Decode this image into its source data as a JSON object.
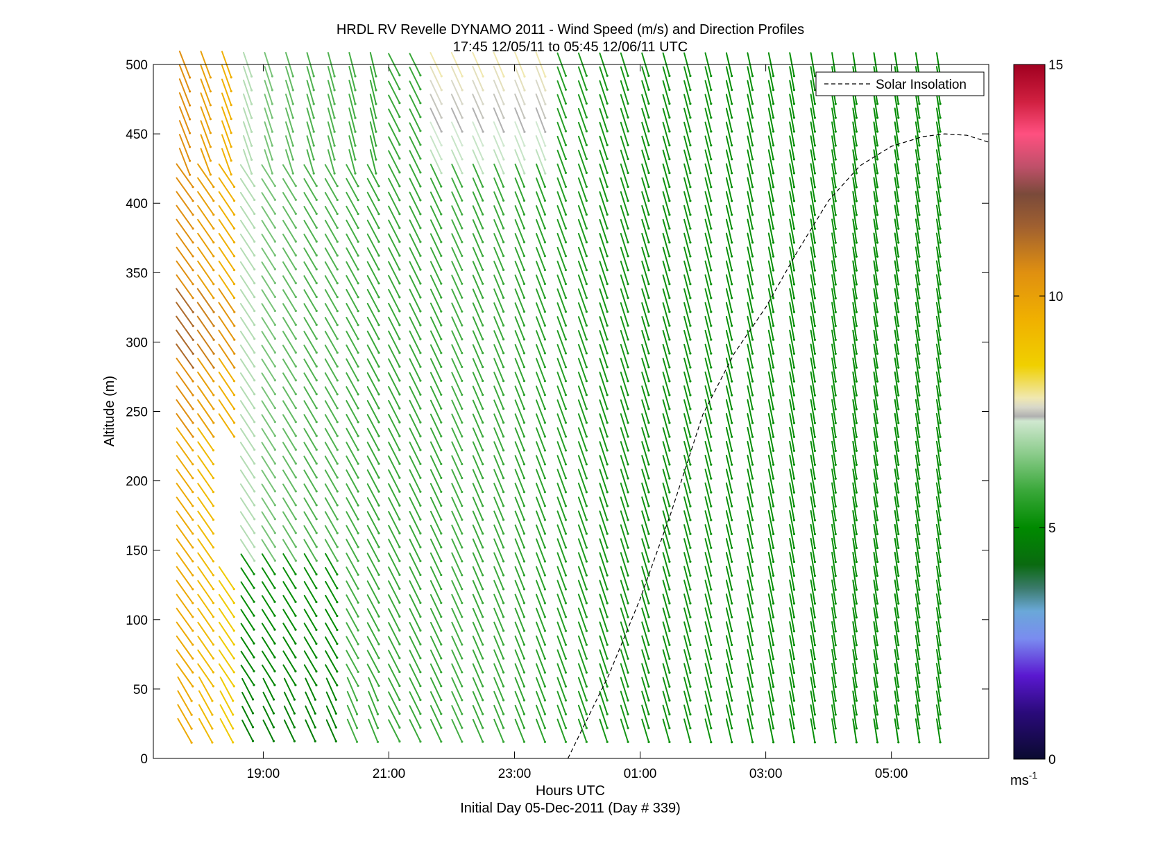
{
  "chart_data": {
    "type": "quiver",
    "title": "HRDL RV Revelle DYNAMO 2011 - Wind Speed (m/s) and Direction Profiles",
    "subtitle": "17:45 12/05/11 to 05:45 12/06/11  UTC",
    "xlabel": "Hours UTC",
    "xlabel2": "Initial Day 05-Dec-2011 (Day # 339)",
    "ylabel": "Altitude (m)",
    "x_range_hours": [
      17.25,
      30.55
    ],
    "y_range": [
      0,
      500
    ],
    "x_ticks": [
      {
        "value": 19,
        "label": "19:00"
      },
      {
        "value": 21,
        "label": "21:00"
      },
      {
        "value": 23,
        "label": "23:00"
      },
      {
        "value": 25,
        "label": "01:00"
      },
      {
        "value": 27,
        "label": "03:00"
      },
      {
        "value": 29,
        "label": "05:00"
      }
    ],
    "y_ticks": [
      0,
      50,
      100,
      150,
      200,
      250,
      300,
      350,
      400,
      450,
      500
    ],
    "profile_start_hour": 17.75,
    "profile_end_hour": 29.75,
    "profile_interval_hours": 0.3333,
    "altitudes": [
      20,
      30,
      40,
      50,
      60,
      70,
      80,
      90,
      100,
      110,
      120,
      130,
      140,
      150,
      160,
      170,
      180,
      190,
      200,
      210,
      220,
      230,
      240,
      250,
      260,
      270,
      280,
      290,
      300,
      310,
      320,
      330,
      340,
      350,
      360,
      370,
      380,
      390,
      400,
      410,
      420,
      430,
      440,
      450,
      460,
      470,
      480,
      490,
      500
    ],
    "wind_speed_by_profile_ms": [
      9.5,
      9.0,
      8.5,
      7.0,
      6.4,
      6.2,
      6.0,
      6.0,
      5.9,
      5.8,
      5.8,
      5.8,
      5.8,
      5.9,
      5.8,
      5.8,
      5.7,
      5.6,
      5.5,
      5.4,
      5.3,
      5.3,
      5.2,
      5.2,
      5.2,
      5.2,
      5.1,
      5.1,
      5.1,
      5.1,
      5.1,
      5.1,
      5.0,
      5.0,
      5.0,
      5.0,
      5.0
    ],
    "wind_speed_note": "representative speeds; low levels 18:45-19:45 near 4-5 m/s, upper levels 21:45-23:45 near 7-8 m/s",
    "legend": {
      "entries": [
        "Solar Insolation"
      ],
      "position": "top-right"
    },
    "solar_insolation": {
      "style": "dashed",
      "x": [
        23.85,
        24.5,
        25.0,
        25.5,
        26.0,
        26.5,
        27.0,
        27.5,
        28.0,
        28.5,
        29.0,
        29.5,
        29.85,
        30.2,
        30.55
      ],
      "y": [
        0,
        60,
        115,
        178,
        248,
        292,
        325,
        365,
        402,
        427,
        441,
        448,
        450,
        449,
        444
      ]
    },
    "colorbar": {
      "range": [
        0,
        15
      ],
      "ticks": [
        0,
        5,
        10,
        15
      ],
      "unit_label": "ms",
      "unit_exponent": "-1"
    }
  },
  "colors": {
    "colorbar_stops": [
      {
        "v": 0,
        "c": "#0a0a30"
      },
      {
        "v": 1,
        "c": "#2a0a7a"
      },
      {
        "v": 1.8,
        "c": "#5a18d0"
      },
      {
        "v": 2.6,
        "c": "#7a8cf0"
      },
      {
        "v": 3.2,
        "c": "#6aa8d8"
      },
      {
        "v": 3.7,
        "c": "#3a7a6a"
      },
      {
        "v": 4.2,
        "c": "#0a6a10"
      },
      {
        "v": 5.0,
        "c": "#008a00"
      },
      {
        "v": 5.8,
        "c": "#3aa83a"
      },
      {
        "v": 6.6,
        "c": "#8ccc8c"
      },
      {
        "v": 7.3,
        "c": "#d0e8d0"
      },
      {
        "v": 7.4,
        "c": "#b0b0b0"
      },
      {
        "v": 7.6,
        "c": "#d8d8c8"
      },
      {
        "v": 7.8,
        "c": "#f0e8b0"
      },
      {
        "v": 8.5,
        "c": "#f0d000"
      },
      {
        "v": 9.5,
        "c": "#f0b000"
      },
      {
        "v": 10.5,
        "c": "#e09010"
      },
      {
        "v": 11.5,
        "c": "#a06030"
      },
      {
        "v": 12.2,
        "c": "#7a4a3a"
      },
      {
        "v": 12.8,
        "c": "#c0506a"
      },
      {
        "v": 13.5,
        "c": "#ff5080"
      },
      {
        "v": 14.2,
        "c": "#d02040"
      },
      {
        "v": 15,
        "c": "#a00020"
      }
    ]
  }
}
